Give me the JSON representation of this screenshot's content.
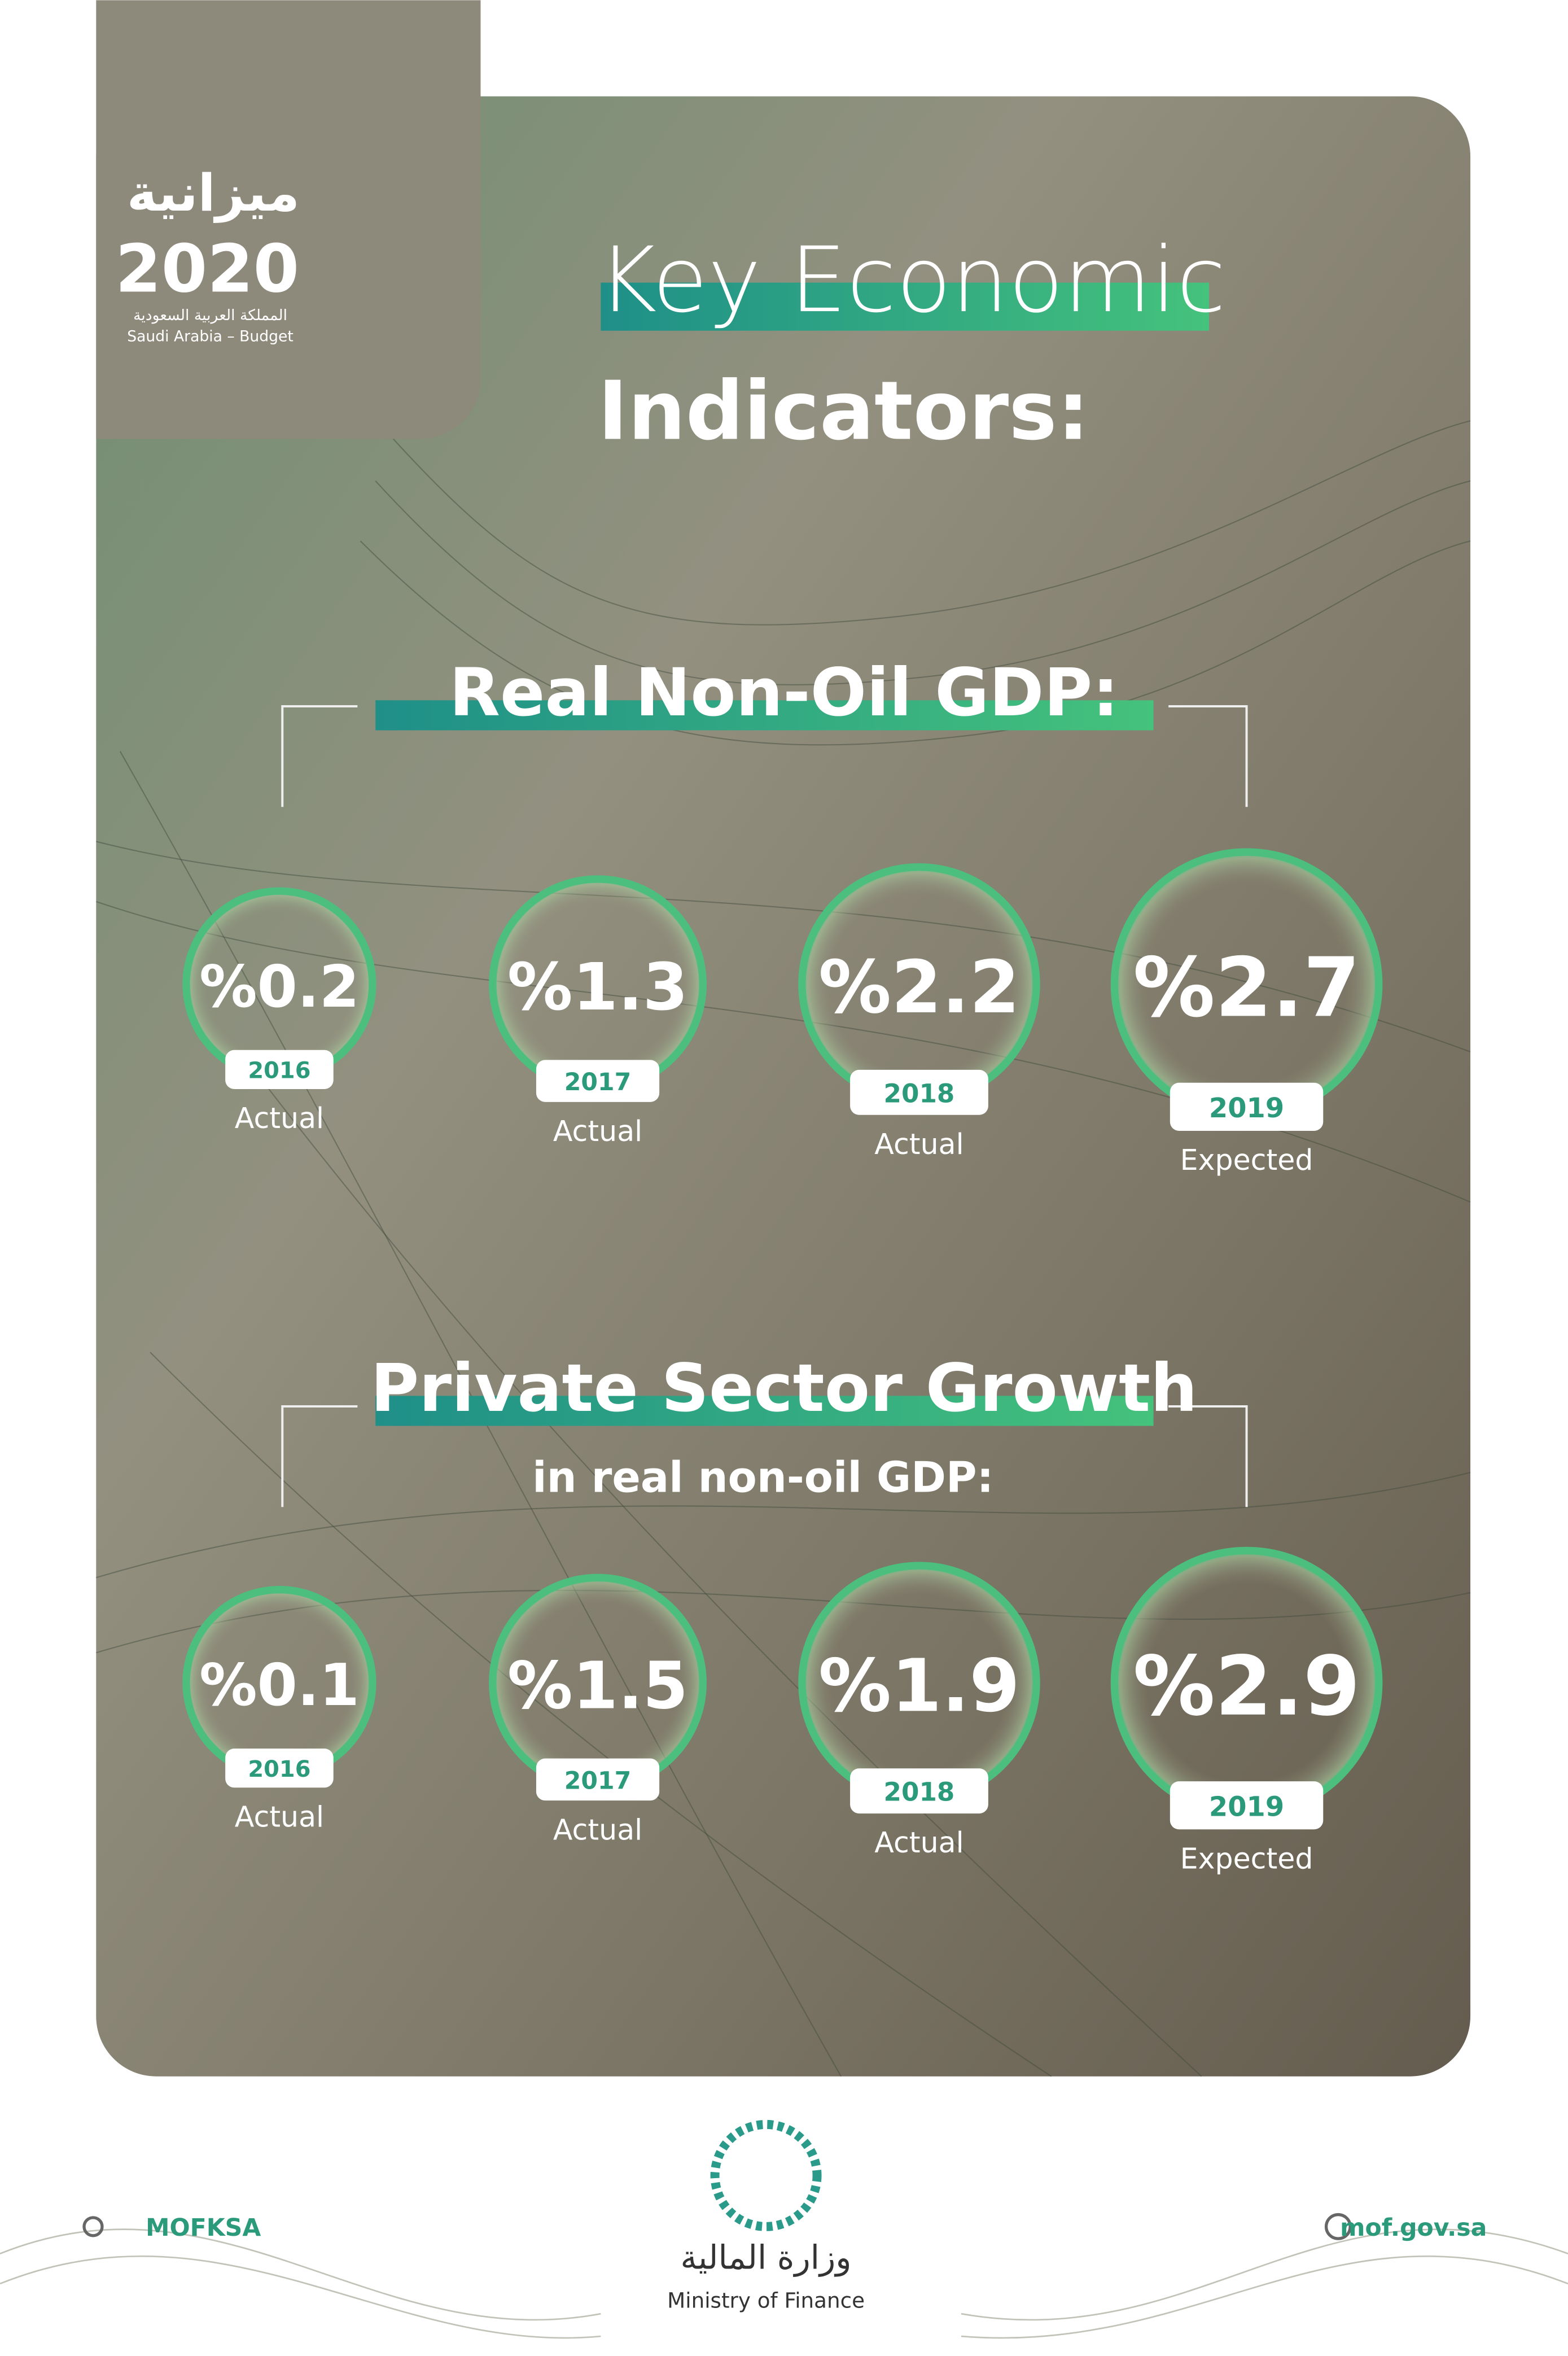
{
  "logo": {
    "arabic_title": "ميزانية",
    "year": "2020",
    "arabic_subtitle": "المملكة العربية السعودية",
    "subtitle": "Saudi Arabia – Budget"
  },
  "title": {
    "line1": "Key Economic",
    "line2": "Indicators:"
  },
  "sections": [
    {
      "title": "Real Non-Oil GDP:",
      "items": [
        {
          "value": "%0.2",
          "year": "2016",
          "status": "Actual"
        },
        {
          "value": "%1.3",
          "year": "2017",
          "status": "Actual"
        },
        {
          "value": "%2.2",
          "year": "2018",
          "status": "Actual"
        },
        {
          "value": "%2.7",
          "year": "2019",
          "status": "Expected"
        }
      ]
    },
    {
      "title": "Private Sector Growth",
      "subtitle": "in real non-oil GDP:",
      "items": [
        {
          "value": "%0.1",
          "year": "2016",
          "status": "Actual"
        },
        {
          "value": "%1.5",
          "year": "2017",
          "status": "Actual"
        },
        {
          "value": "%1.9",
          "year": "2018",
          "status": "Actual"
        },
        {
          "value": "%2.9",
          "year": "2019",
          "status": "Expected"
        }
      ]
    }
  ],
  "footer": {
    "social": "MOFKSA",
    "ministry_arabic": "وزارة المالية",
    "ministry": "Ministry of Finance",
    "website": "mof.gov.sa"
  }
}
